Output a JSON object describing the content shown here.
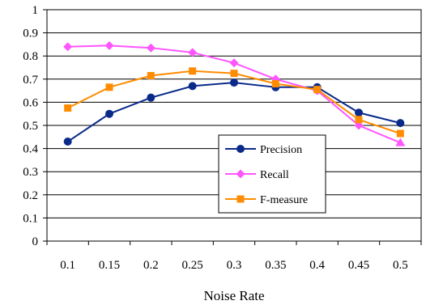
{
  "chart_data": {
    "type": "line",
    "title": "",
    "xlabel": "Noise Rate",
    "ylabel": "",
    "x": [
      "0.1",
      "0.15",
      "0.2",
      "0.25",
      "0.3",
      "0.35",
      "0.4",
      "0.45",
      "0.5"
    ],
    "ylim": [
      0,
      1
    ],
    "yticks": [
      "0",
      "0.1",
      "0.2",
      "0.3",
      "0.4",
      "0.5",
      "0.6",
      "0.7",
      "0.8",
      "0.9",
      "1"
    ],
    "grid": true,
    "legend_position": "lower-right-inside",
    "series": [
      {
        "name": "Precision",
        "color": "#0a2a8a",
        "marker": "circle",
        "values": [
          0.43,
          0.55,
          0.62,
          0.67,
          0.685,
          0.665,
          0.665,
          0.555,
          0.51
        ]
      },
      {
        "name": "Recall",
        "color": "#ff55ff",
        "marker": "diamond",
        "values": [
          0.84,
          0.845,
          0.835,
          0.815,
          0.77,
          0.7,
          0.65,
          0.5,
          0.425
        ]
      },
      {
        "name": "F-measure",
        "color": "#ff8c00",
        "marker": "square",
        "values": [
          0.575,
          0.665,
          0.715,
          0.735,
          0.725,
          0.68,
          0.655,
          0.525,
          0.465
        ]
      }
    ]
  }
}
